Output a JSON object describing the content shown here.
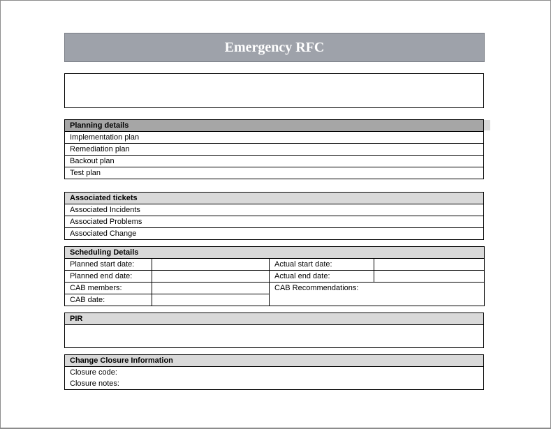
{
  "title": "Emergency RFC",
  "planning": {
    "header": "Planning details",
    "rows": [
      "Implementation plan",
      "Remediation plan",
      "Backout plan",
      "Test plan"
    ]
  },
  "tickets": {
    "header": "Associated tickets",
    "rows": [
      "Associated Incidents",
      "Associated Problems",
      "Associated Change"
    ]
  },
  "scheduling": {
    "header": "Scheduling Details",
    "planned_start": "Planned start date:",
    "planned_end": "Planned end date:",
    "cab_members": "CAB members:",
    "cab_date": "CAB date:",
    "actual_start": "Actual start date:",
    "actual_end": "Actual end date:",
    "cab_recommendations": "CAB Recommendations:"
  },
  "pir": {
    "header": "PIR"
  },
  "closure": {
    "header": "Change Closure Information",
    "code": "Closure code:",
    "notes": "Closure notes:"
  },
  "colors": {
    "title_bar": "#9ea2aa",
    "header_dark": "#a6a6a6",
    "header_light": "#d9d9d9"
  }
}
